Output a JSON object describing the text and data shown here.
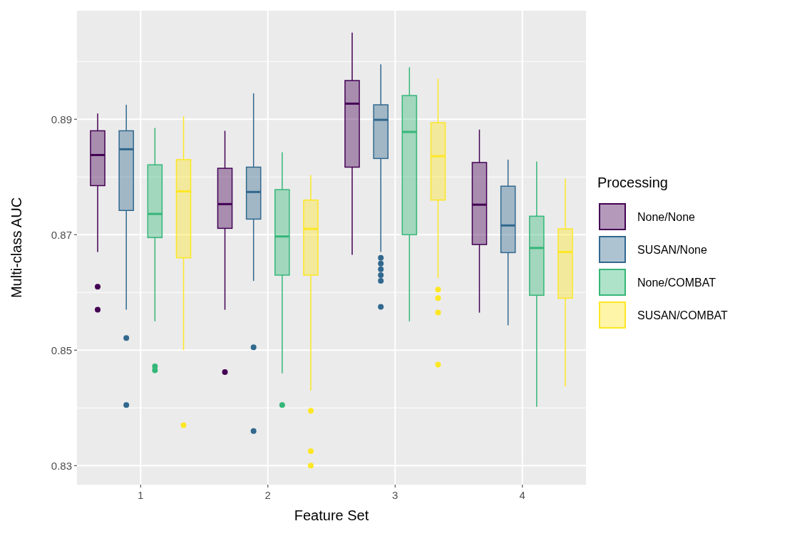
{
  "chart_data": {
    "type": "box",
    "xlabel": "Feature Set",
    "ylabel": "Multi-class AUC",
    "legend_title": "Processing",
    "legend": "right",
    "grid": true,
    "categories": [
      "1",
      "2",
      "3",
      "4"
    ],
    "ylim": [
      0.8267,
      0.9088
    ],
    "yticks": [
      0.83,
      {
        "value": 0.84,
        "label": null
      },
      0.85,
      {
        "value": 0.86,
        "label": null
      },
      0.87,
      {
        "value": 0.88,
        "label": null
      },
      0.89,
      {
        "value": 0.9,
        "label": null
      }
    ],
    "series": [
      {
        "name": "None/None",
        "color": "#440154",
        "boxes": [
          {
            "low": 0.867,
            "q1": 0.8785,
            "median": 0.8838,
            "q3": 0.888,
            "high": 0.891,
            "outliers": [
              0.861,
              0.857
            ]
          },
          {
            "low": 0.857,
            "q1": 0.8711,
            "median": 0.8753,
            "q3": 0.8815,
            "high": 0.888,
            "outliers": [
              0.8462
            ]
          },
          {
            "low": 0.8665,
            "q1": 0.8817,
            "median": 0.8927,
            "q3": 0.8967,
            "high": 0.905
          },
          {
            "low": 0.8565,
            "q1": 0.8683,
            "median": 0.8752,
            "q3": 0.8825,
            "high": 0.8882
          }
        ]
      },
      {
        "name": "SUSAN/None",
        "color": "#31688e",
        "boxes": [
          {
            "low": 0.857,
            "q1": 0.8742,
            "median": 0.8848,
            "q3": 0.888,
            "high": 0.8925,
            "outliers": [
              0.8521,
              0.8405
            ]
          },
          {
            "low": 0.862,
            "q1": 0.8727,
            "median": 0.8774,
            "q3": 0.8817,
            "high": 0.8945,
            "outliers": [
              0.8505,
              0.836
            ]
          },
          {
            "low": 0.867,
            "q1": 0.8832,
            "median": 0.8899,
            "q3": 0.8925,
            "high": 0.8995,
            "outliers": [
              0.866,
              0.865,
              0.864,
              0.863,
              0.862,
              0.8575
            ]
          },
          {
            "low": 0.8543,
            "q1": 0.8669,
            "median": 0.8716,
            "q3": 0.8784,
            "high": 0.883
          }
        ]
      },
      {
        "name": "None/COMBAT",
        "color": "#35b779",
        "boxes": [
          {
            "low": 0.855,
            "q1": 0.8695,
            "median": 0.8736,
            "q3": 0.8821,
            "high": 0.8885,
            "outliers": [
              0.8472,
              0.8465
            ]
          },
          {
            "low": 0.846,
            "q1": 0.863,
            "median": 0.8697,
            "q3": 0.8778,
            "high": 0.8843,
            "outliers": [
              0.8405
            ]
          },
          {
            "low": 0.855,
            "q1": 0.87,
            "median": 0.8878,
            "q3": 0.8941,
            "high": 0.899
          },
          {
            "low": 0.8402,
            "q1": 0.8595,
            "median": 0.8677,
            "q3": 0.8732,
            "high": 0.8827
          }
        ]
      },
      {
        "name": "SUSAN/COMBAT",
        "color": "#fde725",
        "boxes": [
          {
            "low": 0.85,
            "q1": 0.866,
            "median": 0.8775,
            "q3": 0.883,
            "high": 0.8905,
            "outliers": [
              0.837
            ]
          },
          {
            "low": 0.843,
            "q1": 0.863,
            "median": 0.871,
            "q3": 0.876,
            "high": 0.8803,
            "outliers": [
              0.8395,
              0.8325,
              0.83
            ]
          },
          {
            "low": 0.8625,
            "q1": 0.876,
            "median": 0.8836,
            "q3": 0.8894,
            "high": 0.897,
            "outliers": [
              0.8605,
              0.859,
              0.8565,
              0.8475
            ]
          },
          {
            "low": 0.8437,
            "q1": 0.859,
            "median": 0.867,
            "q3": 0.871,
            "high": 0.8797
          }
        ]
      }
    ]
  }
}
